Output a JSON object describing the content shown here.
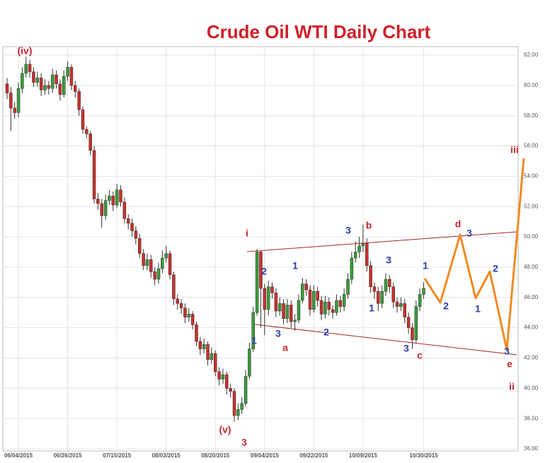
{
  "chart_data": {
    "type": "candlestick",
    "title": "Crude Oil WTI Daily Chart",
    "categories": [
      null,
      null,
      null,
      "06/04/2015",
      null,
      null,
      null,
      null,
      null,
      null,
      null,
      null,
      null,
      null,
      null,
      null,
      "06/26/2015",
      null,
      null,
      null,
      null,
      null,
      null,
      null,
      null,
      null,
      null,
      null,
      null,
      "07/15/2015",
      null,
      null,
      null,
      null,
      null,
      null,
      null,
      null,
      null,
      null,
      null,
      null,
      "08/03/2015",
      null,
      null,
      null,
      null,
      null,
      null,
      null,
      null,
      null,
      null,
      null,
      null,
      "08/20/2015",
      null,
      null,
      null,
      null,
      null,
      null,
      null,
      null,
      null,
      null,
      null,
      null,
      "09/04/2015",
      null,
      null,
      null,
      null,
      null,
      null,
      null,
      null,
      null,
      null,
      null,
      null,
      "09/22/2015",
      null,
      null,
      null,
      null,
      null,
      null,
      null,
      null,
      null,
      null,
      null,
      null,
      "10/09/2015",
      null,
      null,
      null,
      null,
      null,
      null,
      null,
      null,
      null,
      null,
      null,
      null,
      null,
      null,
      null,
      "10/30/2015"
    ],
    "open": [
      60.1,
      59.5,
      58.5,
      58.2,
      59.8,
      60.8,
      61.4,
      60.9,
      60.2,
      60.5,
      59.7,
      60.0,
      59.8,
      60.7,
      60.1,
      59.4,
      60.6,
      61.2,
      60.0,
      59.6,
      58.4,
      57.1,
      56.8,
      55.7,
      52.5,
      52.2,
      51.4,
      52.4,
      52.7,
      52.1,
      53.1,
      52.3,
      51.2,
      50.9,
      50.4,
      49.9,
      48.9,
      48.1,
      48.5,
      47.7,
      47.2,
      47.9,
      48.6,
      48.9,
      47.5,
      45.9,
      45.6,
      45.3,
      44.7,
      44.9,
      44.2,
      43.1,
      42.6,
      42.9,
      41.9,
      42.3,
      41.1,
      40.6,
      40.9,
      40.0,
      39.8,
      38.2,
      38.6,
      39.0,
      40.8,
      42.6,
      45.0,
      49.0,
      46.6,
      45.2,
      46.7,
      46.3,
      45.1,
      45.6,
      44.6,
      45.5,
      44.4,
      44.5,
      45.8,
      46.9,
      46.5,
      45.2,
      46.4,
      45.8,
      44.9,
      45.7,
      45.2,
      45.0,
      45.8,
      45.4,
      46.2,
      47.2,
      48.6,
      49.0,
      49.4,
      49.6,
      48.1,
      46.7,
      46.4,
      45.6,
      46.4,
      47.2,
      46.7,
      45.7,
      45.4,
      45.6,
      44.7,
      44.0,
      43.2,
      45.4,
      46.2
    ],
    "high": [
      60.5,
      59.9,
      58.9,
      60.2,
      61.2,
      61.9,
      61.7,
      61.2,
      60.9,
      60.8,
      60.4,
      60.3,
      61.1,
      61.0,
      60.4,
      61.0,
      61.6,
      61.4,
      60.3,
      59.8,
      58.6,
      57.3,
      57.0,
      56.0,
      52.9,
      52.5,
      52.8,
      53.1,
      53.0,
      53.5,
      53.4,
      52.6,
      51.5,
      51.2,
      50.7,
      50.2,
      49.2,
      48.9,
      48.8,
      48.0,
      48.3,
      49.1,
      49.4,
      49.1,
      47.7,
      46.2,
      45.9,
      45.6,
      45.3,
      45.1,
      44.4,
      43.4,
      43.3,
      43.1,
      42.7,
      42.5,
      41.4,
      41.3,
      41.1,
      40.3,
      40.0,
      39.0,
      39.4,
      41.2,
      43.0,
      45.4,
      49.2,
      49.1,
      46.9,
      47.1,
      47.0,
      46.6,
      46.0,
      45.9,
      45.9,
      45.8,
      44.9,
      46.2,
      47.3,
      47.2,
      46.8,
      46.8,
      46.7,
      46.1,
      46.1,
      46.0,
      45.5,
      46.2,
      46.1,
      46.6,
      47.6,
      49.0,
      49.7,
      50.0,
      50.8,
      49.9,
      48.4,
      47.0,
      46.7,
      46.8,
      47.6,
      47.5,
      47.0,
      46.0,
      46.0,
      45.9,
      45.0,
      44.3,
      45.8,
      46.6,
      47.0
    ],
    "low": [
      59.1,
      57.0,
      57.8,
      57.9,
      59.5,
      60.5,
      60.5,
      59.9,
      59.9,
      59.3,
      59.4,
      59.4,
      59.5,
      59.8,
      59.0,
      59.2,
      60.3,
      59.7,
      59.2,
      58.0,
      56.8,
      56.5,
      55.4,
      52.2,
      51.8,
      50.6,
      51.1,
      52.1,
      51.7,
      51.9,
      52.0,
      50.9,
      50.5,
      50.0,
      49.5,
      48.6,
      47.8,
      47.8,
      47.3,
      46.8,
      46.9,
      47.6,
      48.3,
      47.2,
      45.5,
      45.2,
      44.9,
      44.3,
      44.4,
      43.9,
      42.8,
      42.2,
      42.3,
      41.5,
      41.6,
      40.8,
      40.2,
      40.3,
      39.6,
      39.4,
      37.8,
      37.9,
      38.3,
      38.8,
      40.6,
      42.4,
      44.8,
      44.0,
      43.5,
      44.8,
      45.9,
      44.7,
      44.8,
      44.2,
      44.3,
      44.0,
      43.8,
      44.3,
      45.6,
      46.1,
      44.8,
      45.0,
      45.4,
      44.5,
      44.6,
      44.8,
      44.6,
      44.8,
      45.0,
      45.1,
      45.9,
      46.9,
      48.3,
      48.6,
      49.0,
      47.7,
      46.3,
      45.9,
      45.1,
      45.3,
      46.1,
      46.3,
      45.3,
      45.0,
      45.1,
      44.3,
      43.6,
      42.6,
      43.0,
      45.1,
      45.9
    ],
    "close": [
      59.5,
      58.5,
      58.2,
      59.8,
      60.8,
      61.4,
      60.9,
      60.2,
      60.5,
      59.7,
      60.0,
      59.8,
      60.7,
      60.1,
      59.4,
      60.6,
      61.2,
      60.0,
      59.6,
      58.4,
      57.1,
      56.8,
      55.7,
      52.5,
      52.2,
      51.4,
      52.4,
      52.7,
      52.1,
      53.1,
      52.3,
      51.2,
      50.9,
      50.4,
      49.9,
      48.9,
      48.1,
      48.5,
      47.7,
      47.2,
      47.9,
      48.6,
      48.9,
      47.5,
      45.9,
      45.6,
      45.3,
      44.7,
      44.9,
      44.2,
      43.1,
      42.6,
      42.9,
      41.9,
      42.3,
      41.1,
      40.6,
      40.9,
      40.0,
      39.8,
      38.2,
      38.6,
      39.0,
      40.8,
      42.6,
      45.0,
      49.0,
      46.6,
      45.2,
      46.7,
      46.3,
      45.1,
      45.6,
      44.6,
      45.5,
      44.4,
      44.5,
      45.8,
      46.9,
      46.5,
      45.2,
      46.4,
      45.8,
      44.9,
      45.7,
      45.2,
      45.0,
      45.8,
      45.4,
      46.2,
      47.2,
      48.6,
      49.0,
      49.4,
      49.6,
      48.1,
      46.7,
      46.4,
      45.6,
      46.4,
      47.2,
      46.7,
      45.7,
      45.4,
      45.6,
      44.7,
      44.0,
      43.2,
      45.4,
      46.2,
      46.6
    ],
    "up_color": "#3a9a3a",
    "down_color": "#c8302c",
    "ylim": [
      36,
      62
    ],
    "yticks": [
      {
        "value": 36,
        "label": "36.00"
      },
      {
        "value": 38,
        "label": "38.00"
      },
      {
        "value": 40,
        "label": "40.00"
      },
      {
        "value": 42,
        "label": "42.00"
      },
      {
        "value": 44,
        "label": "44.00"
      },
      {
        "value": 46,
        "label": "46.00"
      },
      {
        "value": 48,
        "label": "48.00"
      },
      {
        "value": 50,
        "label": "50.00"
      },
      {
        "value": 52,
        "label": "52.00"
      },
      {
        "value": 54,
        "label": "54.00"
      },
      {
        "value": 56,
        "label": "56.00"
      },
      {
        "value": 58,
        "label": "58.00"
      },
      {
        "value": 60,
        "label": "60.00"
      },
      {
        "value": 62,
        "label": "62.00"
      }
    ],
    "grid": true,
    "annotations": [
      {
        "text": "(iv)",
        "color": "#c0282d"
      },
      {
        "text": "i",
        "color": "#c0282d"
      },
      {
        "text": "2",
        "color": "#2b3fa8"
      },
      {
        "text": "1",
        "color": "#2b3fa8"
      },
      {
        "text": "3",
        "color": "#2b3fa8"
      },
      {
        "text": "a",
        "color": "#c0282d"
      },
      {
        "text": "1",
        "color": "#2b3fa8"
      },
      {
        "text": "2",
        "color": "#2b3fa8"
      },
      {
        "text": "3",
        "color": "#2b3fa8"
      },
      {
        "text": "b",
        "color": "#c0282d"
      },
      {
        "text": "1",
        "color": "#2b3fa8"
      },
      {
        "text": "3",
        "color": "#2b3fa8"
      },
      {
        "text": "1",
        "color": "#2b3fa8"
      },
      {
        "text": "3",
        "color": "#2b3fa8"
      },
      {
        "text": "c",
        "color": "#c0282d"
      },
      {
        "text": "2",
        "color": "#2b3fa8"
      },
      {
        "text": "d",
        "color": "#c0282d"
      },
      {
        "text": "3",
        "color": "#2b3fa8"
      },
      {
        "text": "1",
        "color": "#2b3fa8"
      },
      {
        "text": "2",
        "color": "#2b3fa8"
      },
      {
        "text": "3",
        "color": "#2b3fa8"
      },
      {
        "text": "e",
        "color": "#c0282d"
      },
      {
        "text": "iii",
        "color": "#c0282d"
      },
      {
        "text": "ii",
        "color": "#c0282d"
      },
      {
        "text": "(v)",
        "color": "#c0282d"
      },
      {
        "text": "3",
        "color": "#c0282d"
      }
    ]
  }
}
